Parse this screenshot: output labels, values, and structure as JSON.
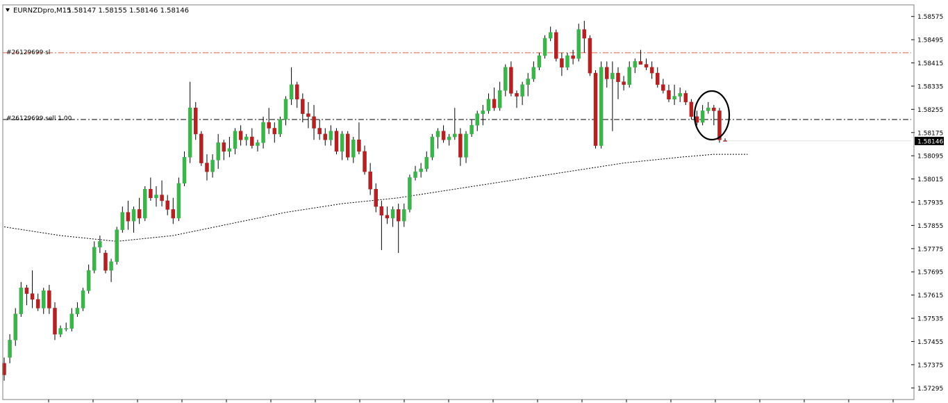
{
  "header": {
    "symbol": "EURNZDpro,M15",
    "ohlc": "1.58147 1.58155 1.58146 1.58146",
    "menu_icon": "triangle-down-icon"
  },
  "lines": {
    "sl": {
      "label": "#26129699 sl",
      "price": 1.5845,
      "color": "#e06040"
    },
    "sell": {
      "label": "#26129699 sell 1.00",
      "price": 1.5822,
      "color": "#000000"
    }
  },
  "current_price_tag": {
    "text": "1.58146",
    "price": 1.58146,
    "color": "#000000"
  },
  "chart_data": {
    "type": "candlestick",
    "y_axis": {
      "min": 1.57255,
      "max": 1.58615,
      "ticks": [
        "1.58575",
        "1.58495",
        "1.58415",
        "1.58335",
        "1.58255",
        "1.58175",
        "1.58095",
        "1.58015",
        "1.57935",
        "1.57855",
        "1.57775",
        "1.57695",
        "1.57615",
        "1.57535",
        "1.57455",
        "1.57375",
        "1.57295"
      ]
    },
    "bull_color": "#3cb44b",
    "bear_color": "#b22222",
    "ma": {
      "color": "#000000",
      "points": [
        [
          0,
          1.5785
        ],
        [
          10,
          1.5782
        ],
        [
          20,
          1.578
        ],
        [
          30,
          1.5782
        ],
        [
          40,
          1.5786
        ],
        [
          50,
          1.579
        ],
        [
          60,
          1.5793
        ],
        [
          70,
          1.5795
        ],
        [
          80,
          1.5798
        ],
        [
          90,
          1.5801
        ],
        [
          100,
          1.5804
        ],
        [
          110,
          1.5807
        ],
        [
          120,
          1.5809
        ],
        [
          126,
          1.581
        ],
        [
          132,
          1.581
        ]
      ]
    },
    "candles": [
      [
        1.5738,
        1.574,
        1.5732,
        1.5734
      ],
      [
        1.574,
        1.5748,
        1.5738,
        1.5746
      ],
      [
        1.5746,
        1.5757,
        1.5744,
        1.5755
      ],
      [
        1.5755,
        1.5766,
        1.5754,
        1.5764
      ],
      [
        1.5764,
        1.5765,
        1.5758,
        1.5762
      ],
      [
        1.5762,
        1.577,
        1.5757,
        1.576
      ],
      [
        1.576,
        1.5762,
        1.5756,
        1.5757
      ],
      [
        1.5757,
        1.5764,
        1.5755,
        1.5763
      ],
      [
        1.5763,
        1.5765,
        1.5755,
        1.5757
      ],
      [
        1.5757,
        1.5759,
        1.5746,
        1.5748
      ],
      [
        1.5748,
        1.5751,
        1.5747,
        1.575
      ],
      [
        1.575,
        1.5752,
        1.5749,
        1.575
      ],
      [
        1.575,
        1.5757,
        1.5749,
        1.5755
      ],
      [
        1.5755,
        1.5759,
        1.5754,
        1.5757
      ],
      [
        1.5757,
        1.5764,
        1.5756,
        1.5763
      ],
      [
        1.5763,
        1.5772,
        1.5762,
        1.577
      ],
      [
        1.577,
        1.578,
        1.5769,
        1.5778
      ],
      [
        1.5778,
        1.5782,
        1.5776,
        1.578
      ],
      [
        1.5776,
        1.5777,
        1.5769,
        1.577
      ],
      [
        1.577,
        1.5774,
        1.5766,
        1.5773
      ],
      [
        1.5773,
        1.5785,
        1.5772,
        1.5784
      ],
      [
        1.5784,
        1.5792,
        1.5783,
        1.579
      ],
      [
        1.579,
        1.5794,
        1.5784,
        1.5787
      ],
      [
        1.5787,
        1.5792,
        1.5783,
        1.5791
      ],
      [
        1.5791,
        1.5795,
        1.5786,
        1.5788
      ],
      [
        1.5788,
        1.5799,
        1.5787,
        1.5798
      ],
      [
        1.5798,
        1.5802,
        1.5794,
        1.5795
      ],
      [
        1.5795,
        1.5799,
        1.5792,
        1.5796
      ],
      [
        1.5796,
        1.5801,
        1.5792,
        1.5794
      ],
      [
        1.5794,
        1.5796,
        1.5789,
        1.5791
      ],
      [
        1.5791,
        1.5795,
        1.5786,
        1.5788
      ],
      [
        1.5788,
        1.5802,
        1.5787,
        1.58
      ],
      [
        1.58,
        1.5811,
        1.5799,
        1.5809
      ],
      [
        1.5809,
        1.5835,
        1.5807,
        1.5826
      ],
      [
        1.5826,
        1.5828,
        1.5815,
        1.5817
      ],
      [
        1.5817,
        1.5818,
        1.5806,
        1.5807
      ],
      [
        1.5807,
        1.581,
        1.5801,
        1.5804
      ],
      [
        1.5804,
        1.581,
        1.5802,
        1.5808
      ],
      [
        1.5808,
        1.5817,
        1.5805,
        1.5814
      ],
      [
        1.5814,
        1.5815,
        1.5808,
        1.5811
      ],
      [
        1.5811,
        1.5816,
        1.5809,
        1.5812
      ],
      [
        1.5812,
        1.5819,
        1.581,
        1.5818
      ],
      [
        1.5818,
        1.582,
        1.5813,
        1.5815
      ],
      [
        1.5815,
        1.5817,
        1.5813,
        1.5816
      ],
      [
        1.5816,
        1.5819,
        1.5812,
        1.5813
      ],
      [
        1.5813,
        1.5815,
        1.5811,
        1.5814
      ],
      [
        1.5814,
        1.5823,
        1.5812,
        1.5821
      ],
      [
        1.5821,
        1.5826,
        1.5817,
        1.5819
      ],
      [
        1.5819,
        1.5821,
        1.5814,
        1.5817
      ],
      [
        1.5817,
        1.5823,
        1.5816,
        1.5822
      ],
      [
        1.5822,
        1.583,
        1.582,
        1.5829
      ],
      [
        1.5829,
        1.584,
        1.5827,
        1.5834
      ],
      [
        1.5834,
        1.5835,
        1.5826,
        1.5829
      ],
      [
        1.5829,
        1.5831,
        1.5821,
        1.5824
      ],
      [
        1.5824,
        1.5828,
        1.5819,
        1.5823
      ],
      [
        1.5823,
        1.5827,
        1.5815,
        1.5819
      ],
      [
        1.5819,
        1.5822,
        1.5815,
        1.5817
      ],
      [
        1.5817,
        1.5819,
        1.5813,
        1.5815
      ],
      [
        1.5815,
        1.582,
        1.5813,
        1.5818
      ],
      [
        1.5818,
        1.5819,
        1.581,
        1.5811
      ],
      [
        1.5811,
        1.5818,
        1.5808,
        1.5817
      ],
      [
        1.5817,
        1.5818,
        1.5808,
        1.5809
      ],
      [
        1.5809,
        1.5816,
        1.5807,
        1.5815
      ],
      [
        1.5815,
        1.5821,
        1.581,
        1.5811
      ],
      [
        1.5811,
        1.5813,
        1.5803,
        1.5804
      ],
      [
        1.5804,
        1.5807,
        1.5796,
        1.5798
      ],
      [
        1.5798,
        1.58,
        1.579,
        1.5792
      ],
      [
        1.5792,
        1.5794,
        1.5777,
        1.5789
      ],
      [
        1.5789,
        1.5792,
        1.5786,
        1.5788
      ],
      [
        1.5788,
        1.5792,
        1.5785,
        1.5791
      ],
      [
        1.5791,
        1.5793,
        1.5776,
        1.5787
      ],
      [
        1.5787,
        1.5793,
        1.5785,
        1.5791
      ],
      [
        1.5791,
        1.5803,
        1.579,
        1.5802
      ],
      [
        1.5802,
        1.5806,
        1.5801,
        1.5804
      ],
      [
        1.5804,
        1.5807,
        1.5802,
        1.5805
      ],
      [
        1.5805,
        1.5811,
        1.5804,
        1.5809
      ],
      [
        1.5809,
        1.5817,
        1.5808,
        1.5816
      ],
      [
        1.5816,
        1.5819,
        1.5812,
        1.5818
      ],
      [
        1.5818,
        1.582,
        1.5814,
        1.5815
      ],
      [
        1.5815,
        1.5817,
        1.5813,
        1.5816
      ],
      [
        1.5816,
        1.5826,
        1.5815,
        1.5817
      ],
      [
        1.5817,
        1.5819,
        1.5806,
        1.5809
      ],
      [
        1.5809,
        1.5818,
        1.5807,
        1.5817
      ],
      [
        1.5817,
        1.5822,
        1.5816,
        1.582
      ],
      [
        1.582,
        1.5825,
        1.5818,
        1.5824
      ],
      [
        1.5824,
        1.5827,
        1.582,
        1.5825
      ],
      [
        1.5825,
        1.5831,
        1.5824,
        1.5829
      ],
      [
        1.5829,
        1.5833,
        1.5825,
        1.5826
      ],
      [
        1.5826,
        1.5835,
        1.5825,
        1.5832
      ],
      [
        1.5832,
        1.5841,
        1.583,
        1.584
      ],
      [
        1.584,
        1.5842,
        1.583,
        1.5831
      ],
      [
        1.5831,
        1.5832,
        1.5826,
        1.583
      ],
      [
        1.583,
        1.5835,
        1.5827,
        1.5834
      ],
      [
        1.5834,
        1.5838,
        1.583,
        1.5836
      ],
      [
        1.5836,
        1.5842,
        1.5835,
        1.584
      ],
      [
        1.584,
        1.5845,
        1.5839,
        1.5844
      ],
      [
        1.5844,
        1.5851,
        1.5843,
        1.585
      ],
      [
        1.585,
        1.5854,
        1.5849,
        1.5852
      ],
      [
        1.5852,
        1.5853,
        1.5842,
        1.5843
      ],
      [
        1.5843,
        1.5845,
        1.5837,
        1.584
      ],
      [
        1.584,
        1.5845,
        1.5839,
        1.5844
      ],
      [
        1.5844,
        1.5846,
        1.5841,
        1.5843
      ],
      [
        1.5843,
        1.5855,
        1.5842,
        1.5853
      ],
      [
        1.5853,
        1.5856,
        1.5845,
        1.585
      ],
      [
        1.585,
        1.5851,
        1.5837,
        1.5838
      ],
      [
        1.5838,
        1.5839,
        1.5812,
        1.5813
      ],
      [
        1.5813,
        1.5842,
        1.5812,
        1.584
      ],
      [
        1.584,
        1.5842,
        1.5833,
        1.5836
      ],
      [
        1.5836,
        1.5842,
        1.5818,
        1.5838
      ],
      [
        1.5838,
        1.584,
        1.5829,
        1.5835
      ],
      [
        1.5835,
        1.5837,
        1.5832,
        1.5834
      ],
      [
        1.5834,
        1.5842,
        1.5833,
        1.584
      ],
      [
        1.584,
        1.5843,
        1.5838,
        1.5842
      ],
      [
        1.5842,
        1.5846,
        1.5841,
        1.5841
      ],
      [
        1.5841,
        1.5843,
        1.5839,
        1.584
      ],
      [
        1.584,
        1.5842,
        1.5836,
        1.5838
      ],
      [
        1.5838,
        1.584,
        1.5833,
        1.5834
      ],
      [
        1.5834,
        1.5836,
        1.5831,
        1.5832
      ],
      [
        1.5832,
        1.5834,
        1.5828,
        1.5829
      ],
      [
        1.5829,
        1.5834,
        1.5827,
        1.583
      ],
      [
        1.583,
        1.5833,
        1.5828,
        1.5831
      ],
      [
        1.5831,
        1.5832,
        1.5827,
        1.5828
      ],
      [
        1.5828,
        1.5829,
        1.5822,
        1.5823
      ],
      [
        1.5823,
        1.5825,
        1.582,
        1.5821
      ],
      [
        1.5821,
        1.5827,
        1.582,
        1.5825
      ],
      [
        1.5825,
        1.5828,
        1.5824,
        1.5826
      ],
      [
        1.5826,
        1.5827,
        1.582,
        1.5825
      ],
      [
        1.5825,
        1.5826,
        1.5814,
        1.5815
      ],
      [
        1.58147,
        1.58155,
        1.58146,
        1.58146
      ]
    ]
  }
}
